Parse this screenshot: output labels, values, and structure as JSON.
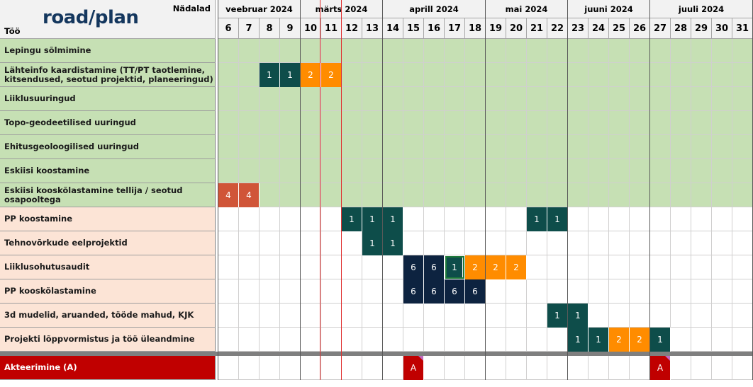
{
  "header": {
    "logo_text": "road/plan",
    "weeks_label": "Nädalad",
    "tasks_label": "Töö"
  },
  "months": [
    {
      "label": "veebruar 2024",
      "start_week": 6,
      "span": 4
    },
    {
      "label": "märts 2024",
      "start_week": 10,
      "span": 4
    },
    {
      "label": "aprill 2024",
      "start_week": 14,
      "span": 5
    },
    {
      "label": "mai 2024",
      "start_week": 19,
      "span": 4
    },
    {
      "label": "juuni 2024",
      "start_week": 23,
      "span": 4
    },
    {
      "label": "juuli 2024",
      "start_week": 27,
      "span": 5
    }
  ],
  "weeks": [
    6,
    7,
    8,
    9,
    10,
    11,
    12,
    13,
    14,
    15,
    16,
    17,
    18,
    19,
    20,
    21,
    22,
    23,
    24,
    25,
    26,
    27,
    28,
    29,
    30,
    31
  ],
  "current_week_marker": 11,
  "colors": {
    "phase1_bg": "#c6e0b4",
    "phase2_bg": "#fce4d6",
    "milestone_bg": "#c00000",
    "code_1": "#0e4d4a",
    "code_2": "#ff8c00",
    "code_4": "#d05538",
    "code_6": "#0d2340",
    "code_A": "#c00000"
  },
  "tasks": [
    {
      "name": "Lepingu sõlmimine",
      "phase": 1,
      "bars": []
    },
    {
      "name": "Lähteinfo kaardistamine (TT/PT taotlemine, kitsendused, seotud projektid, planeeringud)",
      "phase": 1,
      "bars": [
        {
          "week": 8,
          "code": "1"
        },
        {
          "week": 9,
          "code": "1"
        },
        {
          "week": 10,
          "code": "2"
        },
        {
          "week": 11,
          "code": "2"
        }
      ]
    },
    {
      "name": "Liiklusuuringud",
      "phase": 1,
      "bars": []
    },
    {
      "name": "Topo-geodeetilised uuringud",
      "phase": 1,
      "bars": []
    },
    {
      "name": "Ehitusgeoloogilised uuringud",
      "phase": 1,
      "bars": []
    },
    {
      "name": "Eskiisi koostamine",
      "phase": 1,
      "bars": []
    },
    {
      "name": "Eskiisi kooskõlastamine tellija / seotud osapooltega",
      "phase": 1,
      "bars": [
        {
          "week": 6,
          "code": "4"
        },
        {
          "week": 7,
          "code": "4"
        }
      ]
    },
    {
      "name": "PP koostamine",
      "phase": 2,
      "bars": [
        {
          "week": 12,
          "code": "1"
        },
        {
          "week": 13,
          "code": "1"
        },
        {
          "week": 14,
          "code": "1"
        },
        {
          "week": 21,
          "code": "1"
        },
        {
          "week": 22,
          "code": "1"
        }
      ]
    },
    {
      "name": "Tehnovõrkude eelprojektid",
      "phase": 2,
      "bars": [
        {
          "week": 13,
          "code": "1"
        },
        {
          "week": 14,
          "code": "1"
        }
      ]
    },
    {
      "name": "Liiklusohutusaudit",
      "phase": 2,
      "bars": [
        {
          "week": 15,
          "code": "6"
        },
        {
          "week": 16,
          "code": "6"
        },
        {
          "week": 17,
          "code": "1",
          "selected": true
        },
        {
          "week": 18,
          "code": "2"
        },
        {
          "week": 19,
          "code": "2"
        },
        {
          "week": 20,
          "code": "2"
        }
      ]
    },
    {
      "name": "PP kooskõlastamine",
      "phase": 2,
      "bars": [
        {
          "week": 15,
          "code": "6"
        },
        {
          "week": 16,
          "code": "6"
        },
        {
          "week": 17,
          "code": "6"
        },
        {
          "week": 18,
          "code": "6"
        }
      ]
    },
    {
      "name": "3d mudelid, aruanded, tööde mahud, KJK",
      "phase": 2,
      "bars": [
        {
          "week": 22,
          "code": "1"
        },
        {
          "week": 23,
          "code": "1"
        }
      ]
    },
    {
      "name": "Projekti lõppvormistus ja töö üleandmine",
      "phase": 2,
      "bars": [
        {
          "week": 23,
          "code": "1"
        },
        {
          "week": 24,
          "code": "1"
        },
        {
          "week": 25,
          "code": "2"
        },
        {
          "week": 26,
          "code": "2"
        },
        {
          "week": 27,
          "code": "1"
        }
      ]
    }
  ],
  "milestone_row": {
    "name": "Akteerimine (A)",
    "bars": [
      {
        "week": 15,
        "code": "A"
      },
      {
        "week": 27,
        "code": "A"
      }
    ]
  }
}
